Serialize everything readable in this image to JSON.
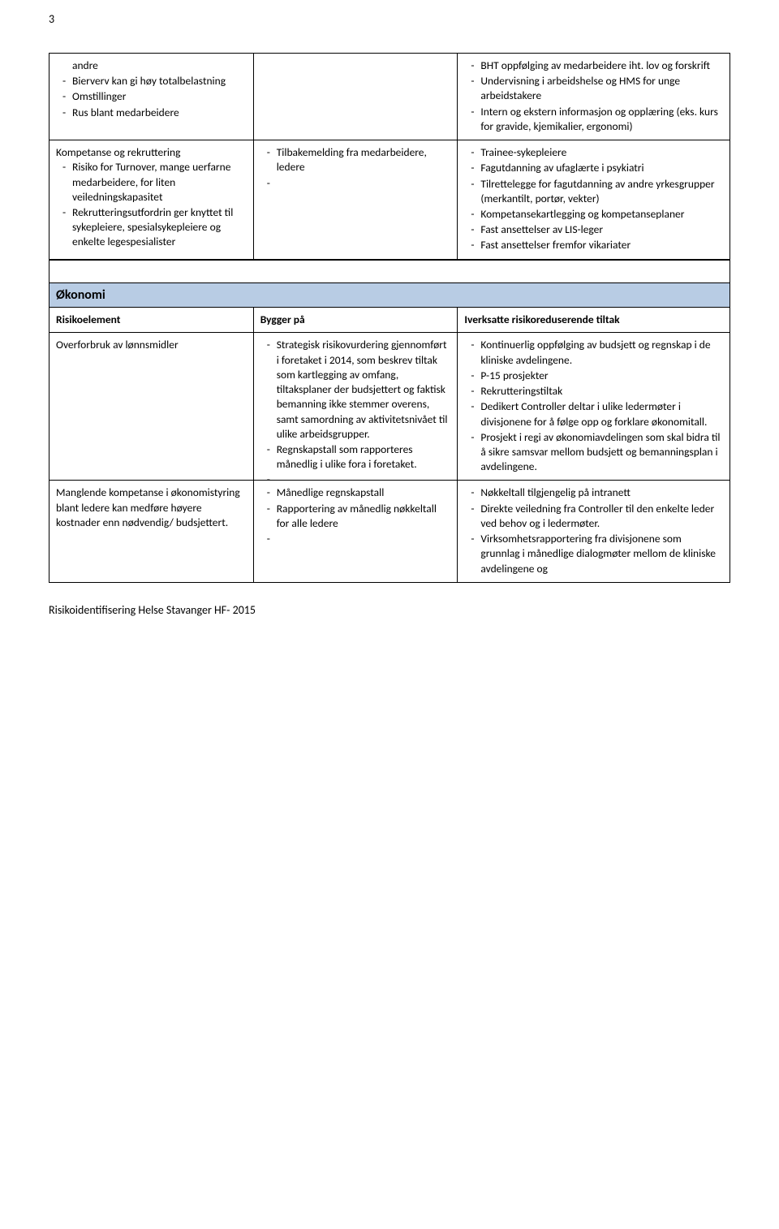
{
  "page_number": "3",
  "top_section": {
    "rows": [
      {
        "col1_items": [
          {
            "text": "andre",
            "cont": true
          },
          {
            "text": "Bierverv kan gi høy totalbelastning"
          },
          {
            "text": "Omstillinger"
          },
          {
            "text": "Rus blant medarbeidere"
          }
        ],
        "col2_items": [],
        "col3_items": [
          {
            "text": "BHT oppfølging av medarbeidere iht. lov og forskrift"
          },
          {
            "text": "Undervisning i arbeidshelse og HMS for unge arbeidstakere"
          },
          {
            "text": "Intern og ekstern informasjon og opplæring (eks. kurs for gravide, kjemikalier, ergonomi)"
          }
        ]
      },
      {
        "col1_prefix": "Kompetanse og rekruttering",
        "col1_items": [
          {
            "text": "Risiko for Turnover, mange uerfarne medarbeidere, for liten veiledningskapasitet"
          },
          {
            "text": "",
            "cont": true
          },
          {
            "text": "Rekrutteringsutfordrin ger knyttet til sykepleiere, spesialsykepleiere og enkelte legespesialister"
          }
        ],
        "col2_items": [
          {
            "text": "Tilbakemelding fra medarbeidere, ledere"
          },
          {
            "text": ""
          }
        ],
        "col3_items": [
          {
            "text": "Trainee-sykepleiere"
          },
          {
            "text": "Fagutdanning av ufaglærte i psykiatri"
          },
          {
            "text": "Tilrettelegge for fagutdanning av andre yrkesgrupper (merkantilt, portør, vekter)"
          },
          {
            "text": "Kompetansekartlegging og kompetanseplaner"
          },
          {
            "text": "Fast ansettelser av LIS-leger"
          },
          {
            "text": "Fast ansettelser fremfor vikariater"
          }
        ]
      }
    ]
  },
  "okonomi": {
    "heading": "Økonomi",
    "header": {
      "c1": "Risikoelement",
      "c2": "Bygger på",
      "c3": "Iverksatte risikoreduserende tiltak"
    },
    "rows": [
      {
        "col1_text": "Overforbruk av lønnsmidler",
        "col2_items": [
          {
            "text": "Strategisk risikovurdering gjennomført i foretaket i 2014, som beskrev tiltak som kartlegging av omfang, tiltaksplaner der budsjettert og faktisk bemanning ikke stemmer overens, samt samordning av aktivitetsnivået til ulike arbeidsgrupper."
          },
          {
            "text": "Regnskapstall som rapporteres månedlig i ulike fora i foretaket."
          },
          {
            "text": ""
          }
        ],
        "col3_items": [
          {
            "text": "Kontinuerlig oppfølging av budsjett og regnskap i de kliniske avdelingene."
          },
          {
            "text": "P-15 prosjekter"
          },
          {
            "text": "Rekrutteringstiltak"
          },
          {
            "text": "Dedikert Controller deltar i ulike ledermøter i divisjonene for å følge opp og forklare økonomitall."
          },
          {
            "text": "Prosjekt i regi av økonomiavdelingen som skal bidra til å sikre samsvar mellom budsjett og bemanningsplan i avdelingene."
          }
        ]
      },
      {
        "col1_text": "Manglende kompetanse i økonomistyring blant ledere kan medføre høyere kostnader enn nødvendig/ budsjettert.",
        "col2_items": [
          {
            "text": "Månedlige regnskapstall"
          },
          {
            "text": "Rapportering av månedlig nøkkeltall for alle ledere"
          },
          {
            "text": ""
          }
        ],
        "col3_items": [
          {
            "text": "Nøkkeltall tilgjengelig på intranett"
          },
          {
            "text": "Direkte veiledning fra Controller til den enkelte leder ved behov og i ledermøter."
          },
          {
            "text": "Virksomhetsrapportering fra divisjonene som grunnlag i månedlige dialogmøter mellom de kliniske avdelingene og"
          }
        ]
      }
    ]
  },
  "footer": "Risikoidentifisering Helse Stavanger HF- 2015",
  "colors": {
    "section_bg": "#b8cce4",
    "border": "#000000"
  }
}
